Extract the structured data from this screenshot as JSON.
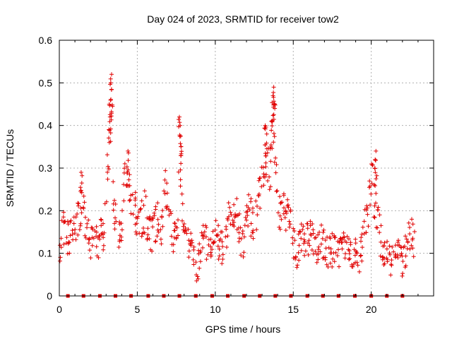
{
  "chart_data": {
    "type": "scatter",
    "title": "Day 024 of 2023, SRMTID for receiver tow2",
    "xlabel": "GPS time / hours",
    "ylabel": "SRMTID / TECUs",
    "xlim": [
      0,
      24
    ],
    "ylim": [
      0,
      0.6
    ],
    "x_ticks": [
      0,
      5,
      10,
      15,
      20
    ],
    "y_ticks": [
      0,
      0.1,
      0.2,
      0.3,
      0.4,
      0.5,
      0.6
    ],
    "x_tick_labels": [
      "0",
      "5",
      "10",
      "15",
      "20"
    ],
    "y_tick_labels": [
      "0",
      "0.1",
      "0.2",
      "0.3",
      "0.4",
      "0.5",
      "0.6"
    ],
    "grid": true,
    "marker": "plus",
    "color": "#e00000",
    "series": [
      {
        "name": "SRMTID",
        "trend": [
          [
            0.0,
            0.1
          ],
          [
            0.2,
            0.16
          ],
          [
            0.4,
            0.15
          ],
          [
            0.6,
            0.13
          ],
          [
            0.8,
            0.14
          ],
          [
            1.0,
            0.15
          ],
          [
            1.2,
            0.18
          ],
          [
            1.4,
            0.2
          ],
          [
            1.5,
            0.24
          ],
          [
            1.6,
            0.2
          ],
          [
            1.8,
            0.14
          ],
          [
            2.0,
            0.13
          ],
          [
            2.2,
            0.15
          ],
          [
            2.4,
            0.12
          ],
          [
            2.6,
            0.14
          ],
          [
            2.8,
            0.15
          ],
          [
            3.0,
            0.19
          ],
          [
            3.1,
            0.3
          ],
          [
            3.2,
            0.36
          ],
          [
            3.3,
            0.42
          ],
          [
            3.4,
            0.3
          ],
          [
            3.5,
            0.22
          ],
          [
            3.7,
            0.15
          ],
          [
            3.9,
            0.14
          ],
          [
            4.0,
            0.18
          ],
          [
            4.2,
            0.27
          ],
          [
            4.35,
            0.31
          ],
          [
            4.5,
            0.27
          ],
          [
            4.7,
            0.22
          ],
          [
            4.9,
            0.2
          ],
          [
            5.1,
            0.17
          ],
          [
            5.3,
            0.18
          ],
          [
            5.5,
            0.2
          ],
          [
            5.7,
            0.16
          ],
          [
            5.9,
            0.14
          ],
          [
            6.1,
            0.16
          ],
          [
            6.3,
            0.18
          ],
          [
            6.5,
            0.15
          ],
          [
            6.7,
            0.22
          ],
          [
            6.8,
            0.25
          ],
          [
            7.0,
            0.2
          ],
          [
            7.2,
            0.15
          ],
          [
            7.4,
            0.14
          ],
          [
            7.6,
            0.17
          ],
          [
            7.7,
            0.32
          ],
          [
            7.8,
            0.3
          ],
          [
            7.9,
            0.2
          ],
          [
            8.0,
            0.18
          ],
          [
            8.2,
            0.12
          ],
          [
            8.4,
            0.11
          ],
          [
            8.6,
            0.09
          ],
          [
            8.8,
            0.05
          ],
          [
            9.0,
            0.1
          ],
          [
            9.2,
            0.15
          ],
          [
            9.4,
            0.13
          ],
          [
            9.6,
            0.11
          ],
          [
            9.8,
            0.12
          ],
          [
            10.0,
            0.14
          ],
          [
            10.2,
            0.13
          ],
          [
            10.4,
            0.11
          ],
          [
            10.6,
            0.13
          ],
          [
            10.8,
            0.17
          ],
          [
            11.0,
            0.2
          ],
          [
            11.2,
            0.21
          ],
          [
            11.4,
            0.19
          ],
          [
            11.6,
            0.14
          ],
          [
            11.8,
            0.13
          ],
          [
            12.0,
            0.17
          ],
          [
            12.2,
            0.2
          ],
          [
            12.4,
            0.16
          ],
          [
            12.6,
            0.18
          ],
          [
            12.8,
            0.22
          ],
          [
            13.0,
            0.28
          ],
          [
            13.2,
            0.35
          ],
          [
            13.4,
            0.3
          ],
          [
            13.6,
            0.32
          ],
          [
            13.7,
            0.43
          ],
          [
            13.9,
            0.28
          ],
          [
            14.0,
            0.22
          ],
          [
            14.2,
            0.18
          ],
          [
            14.4,
            0.21
          ],
          [
            14.6,
            0.2
          ],
          [
            14.8,
            0.17
          ],
          [
            15.0,
            0.12
          ],
          [
            15.2,
            0.1
          ],
          [
            15.4,
            0.13
          ],
          [
            15.6,
            0.14
          ],
          [
            15.8,
            0.12
          ],
          [
            16.0,
            0.14
          ],
          [
            16.2,
            0.13
          ],
          [
            16.4,
            0.12
          ],
          [
            16.6,
            0.11
          ],
          [
            16.8,
            0.13
          ],
          [
            17.0,
            0.12
          ],
          [
            17.2,
            0.11
          ],
          [
            17.4,
            0.1
          ],
          [
            17.6,
            0.12
          ],
          [
            17.8,
            0.11
          ],
          [
            18.0,
            0.1
          ],
          [
            18.2,
            0.11
          ],
          [
            18.4,
            0.1
          ],
          [
            18.6,
            0.1
          ],
          [
            18.8,
            0.08
          ],
          [
            19.0,
            0.1
          ],
          [
            19.2,
            0.08
          ],
          [
            19.4,
            0.12
          ],
          [
            19.6,
            0.18
          ],
          [
            19.8,
            0.21
          ],
          [
            19.9,
            0.24
          ],
          [
            20.0,
            0.26
          ],
          [
            20.1,
            0.29
          ],
          [
            20.2,
            0.22
          ],
          [
            20.4,
            0.19
          ],
          [
            20.6,
            0.13
          ],
          [
            20.8,
            0.11
          ],
          [
            21.0,
            0.09
          ],
          [
            21.2,
            0.08
          ],
          [
            21.4,
            0.11
          ],
          [
            21.6,
            0.1
          ],
          [
            21.8,
            0.09
          ],
          [
            22.0,
            0.08
          ],
          [
            22.2,
            0.11
          ],
          [
            22.4,
            0.13
          ],
          [
            22.6,
            0.14
          ],
          [
            22.8,
            0.13
          ]
        ],
        "peaks": [
          [
            3.35,
            0.52
          ],
          [
            3.3,
            0.5
          ],
          [
            3.2,
            0.45
          ],
          [
            3.25,
            0.42
          ],
          [
            4.4,
            0.34
          ],
          [
            7.7,
            0.42
          ],
          [
            7.75,
            0.4
          ],
          [
            7.8,
            0.35
          ],
          [
            13.75,
            0.49
          ],
          [
            13.7,
            0.47
          ],
          [
            13.8,
            0.45
          ],
          [
            13.6,
            0.41
          ],
          [
            13.2,
            0.4
          ],
          [
            13.3,
            0.38
          ],
          [
            20.3,
            0.34
          ],
          [
            20.25,
            0.32
          ],
          [
            1.4,
            0.29
          ]
        ],
        "spread": 0.05,
        "density": 6
      }
    ],
    "baseline_marks": {
      "y": 0,
      "x": [
        0.55,
        1.55,
        2.6,
        3.6,
        4.6,
        5.7,
        6.7,
        7.7,
        8.75,
        9.8,
        10.8,
        11.85,
        12.85,
        13.85,
        14.85,
        15.9,
        16.9,
        17.9,
        18.95,
        20.0,
        21.0,
        22.0
      ]
    }
  }
}
